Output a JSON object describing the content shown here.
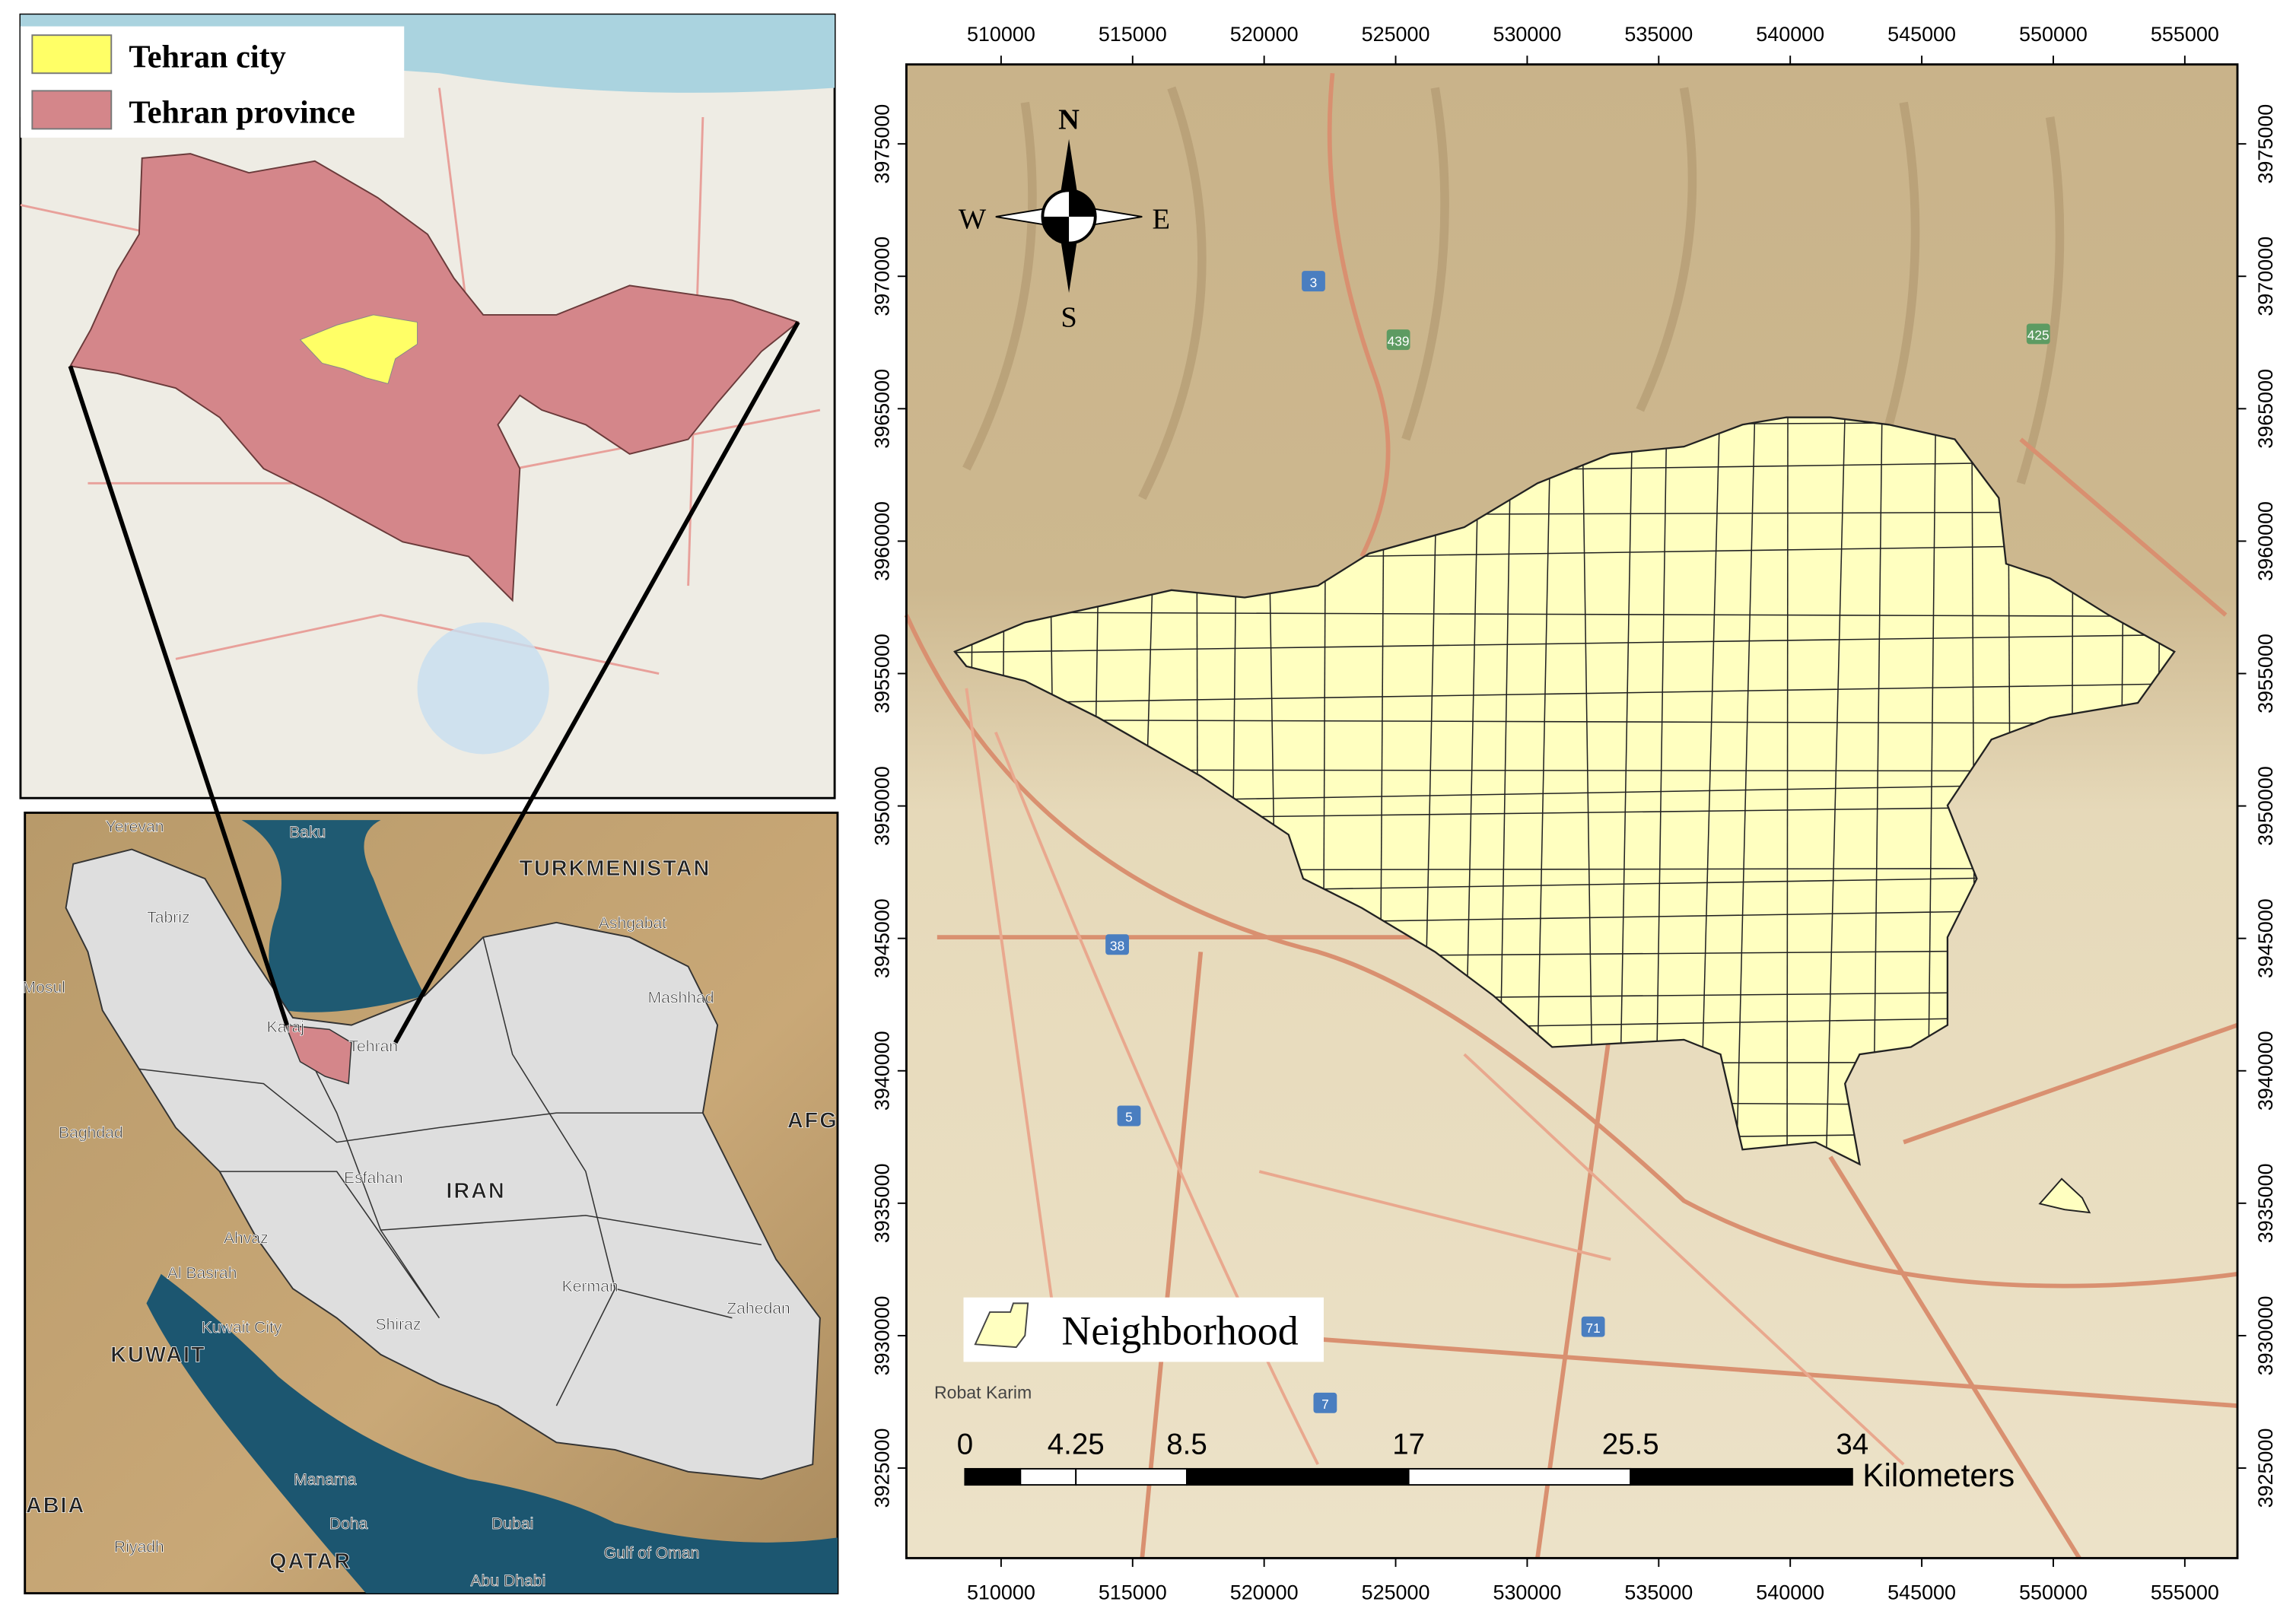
{
  "inset_province": {
    "legend": [
      {
        "label": "Tehran city",
        "color": "#ffff66"
      },
      {
        "label": "Tehran province",
        "color": "#d4868a"
      }
    ]
  },
  "inset_region": {
    "labels": [
      "Baku",
      "Yerevan",
      "Tabriz",
      "TURKMENISTAN",
      "Ashgabat",
      "Mosul",
      "Mashhad",
      "Karaj",
      "Tehran",
      "Baghdad",
      "Esfahan",
      "IRAN",
      "AFG",
      "Ahvaz",
      "Al Basrah",
      "Kuwait City",
      "KUWAIT",
      "Shiraz",
      "Kerman",
      "Zahedan",
      "Manama",
      "Doha",
      "QATAR",
      "Dubai",
      "Abu Dhabi",
      "ABIA",
      "Riyadh",
      "Gulf of Oman"
    ]
  },
  "main_map": {
    "xlim": [
      506400,
      557000
    ],
    "xticks": [
      510000,
      515000,
      520000,
      525000,
      530000,
      535000,
      540000,
      545000,
      550000,
      555000
    ],
    "ylim": [
      3921600,
      3978000
    ],
    "yticks": [
      3925000,
      3930000,
      3935000,
      3940000,
      3945000,
      3950000,
      3955000,
      3960000,
      3965000,
      3970000,
      3975000
    ],
    "compass": {
      "north": "N",
      "east": "E",
      "south": "S",
      "west": "W"
    },
    "legend": {
      "label": "Neighborhood",
      "color": "#ffffc0"
    },
    "scale_bar": {
      "ticks": [
        0,
        4.25,
        8.5,
        17,
        25.5,
        34
      ],
      "unit": "Kilometers"
    },
    "place_label": "Robat Karim",
    "road_shields": [
      "3",
      "439",
      "425",
      "38",
      "5",
      "71",
      "7"
    ]
  }
}
